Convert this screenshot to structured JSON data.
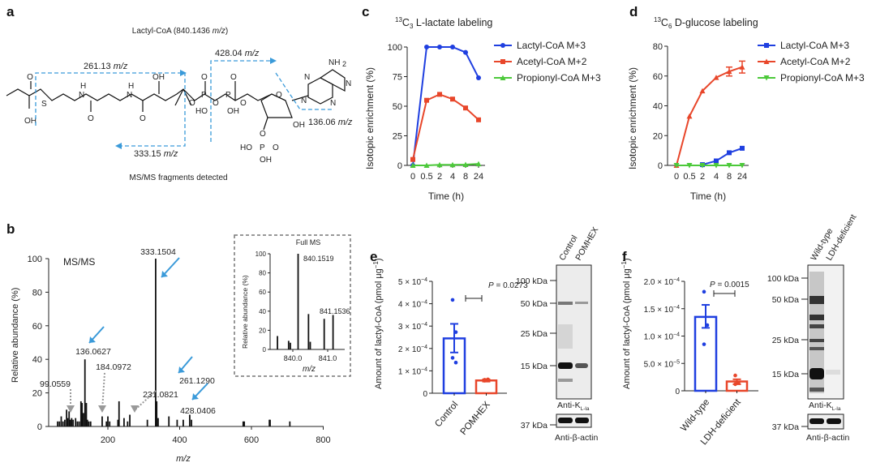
{
  "panels": {
    "a": "a",
    "b": "b",
    "c": "c",
    "d": "d",
    "e": "e",
    "f": "f"
  },
  "structure": {
    "title": "Lactyl-CoA (840.1436 ",
    "title_unit": "m/z",
    "title_close": ")",
    "fragments": [
      {
        "value": "261.13 ",
        "unit": "m/z"
      },
      {
        "value": "428.04 ",
        "unit": "m/z"
      },
      {
        "value": "333.15 ",
        "unit": "m/z"
      },
      {
        "value": "136.06 ",
        "unit": "m/z"
      }
    ],
    "caption": "MS/MS fragments detected",
    "atoms": [
      "O",
      "OH",
      "S",
      "H",
      "N",
      "O",
      "H",
      "N",
      "O",
      "OH",
      "O",
      "P",
      "O",
      "HO",
      "O",
      "P",
      "OH",
      "O",
      "O",
      "O",
      "N",
      "N",
      "N",
      "N",
      "NH",
      "2",
      "OH",
      "O",
      "HO",
      "P",
      "O",
      "OH"
    ],
    "fragment_color": "#3a9ad9"
  },
  "chart_data": [
    {
      "id": "b",
      "type": "bar",
      "title": "MS/MS",
      "xlabel": "m/z",
      "ylabel": "Relative abundance (%)",
      "xlim": [
        35,
        800
      ],
      "ylim": [
        0,
        100
      ],
      "xticks": [
        200,
        400,
        600,
        800
      ],
      "yticks": [
        0,
        20,
        40,
        60,
        80,
        100
      ],
      "peaks": [
        [
          60,
          3
        ],
        [
          65,
          3
        ],
        [
          70,
          6
        ],
        [
          75,
          3
        ],
        [
          80,
          4
        ],
        [
          85,
          10
        ],
        [
          88,
          5
        ],
        [
          92,
          9
        ],
        [
          95,
          4
        ],
        [
          99.0559,
          5
        ],
        [
          103,
          4
        ],
        [
          110,
          5
        ],
        [
          115,
          3
        ],
        [
          120,
          3
        ],
        [
          125,
          15
        ],
        [
          128,
          14
        ],
        [
          132,
          8
        ],
        [
          136.0627,
          40
        ],
        [
          140,
          14
        ],
        [
          143,
          4
        ],
        [
          147,
          3
        ],
        [
          152,
          3
        ],
        [
          184.0972,
          6
        ],
        [
          196,
          3
        ],
        [
          200,
          6
        ],
        [
          205,
          3
        ],
        [
          228,
          4
        ],
        [
          231.0821,
          15
        ],
        [
          245,
          5
        ],
        [
          255,
          3
        ],
        [
          261.129,
          7
        ],
        [
          310,
          4
        ],
        [
          333.1504,
          100
        ],
        [
          336,
          15
        ],
        [
          340,
          5
        ],
        [
          370,
          6
        ],
        [
          393,
          4
        ],
        [
          410,
          4
        ],
        [
          428.0406,
          7
        ],
        [
          433,
          4
        ],
        [
          577,
          3
        ],
        [
          580,
          3
        ],
        [
          650,
          4
        ],
        [
          652,
          4
        ],
        [
          707,
          3
        ]
      ],
      "annotations": [
        "333.1504",
        "136.0627",
        "184.0972",
        "99.0559",
        "231.0821",
        "261.1290",
        "428.0406"
      ],
      "arrow_color": "#3a9ad9",
      "dotted_arrow_color": "#999999"
    },
    {
      "id": "b-inset",
      "type": "bar",
      "title": "Full MS",
      "xlabel": "m/z",
      "ylabel": "Relative abundance (%)",
      "xticks": [
        "840.0",
        "841.0"
      ],
      "yticks": [
        0,
        20,
        40,
        60,
        80,
        100
      ],
      "ylim": [
        0,
        100
      ],
      "peaks": [
        [
          839.56,
          14
        ],
        [
          839.88,
          9
        ],
        [
          839.93,
          7
        ],
        [
          840.1519,
          100
        ],
        [
          840.45,
          37
        ],
        [
          840.5,
          8
        ],
        [
          840.9,
          32
        ],
        [
          841.1536,
          36
        ]
      ],
      "annotations": [
        "840.1519",
        "841.1536"
      ]
    },
    {
      "id": "c",
      "type": "line",
      "title_sup": "13",
      "title_main": "C",
      "title_sub": "3",
      "title_rest": " L-lactate labeling",
      "xlabel": "Time (h)",
      "ylabel": "Isotopic enrichment (%)",
      "categories": [
        "0",
        "0.5",
        "2",
        "4",
        "8",
        "24"
      ],
      "yticks": [
        0,
        25,
        50,
        75,
        100
      ],
      "ylim": [
        0,
        100
      ],
      "legend": "top-right",
      "series": [
        {
          "name": "Lactyl-CoA M+3",
          "color": "#1f3fe0",
          "marker": "circle",
          "values": [
            0,
            100,
            100,
            100,
            95.5,
            74
          ]
        },
        {
          "name": "Acetyl-CoA M+2",
          "color": "#e8462a",
          "marker": "square",
          "values": [
            5,
            55,
            60,
            56,
            48.5,
            38.5
          ]
        },
        {
          "name": "Propionyl-CoA M+3",
          "color": "#4cc93a",
          "marker": "triangle",
          "values": [
            0,
            0,
            0.5,
            0.5,
            0.7,
            1.3
          ]
        }
      ]
    },
    {
      "id": "d",
      "type": "line",
      "title_sup": "13",
      "title_main": "C",
      "title_sub": "6",
      "title_rest": " D-glucose labeling",
      "xlabel": "Time (h)",
      "ylabel": "Isotopic enrichment (%)",
      "categories": [
        "0",
        "0.5",
        "2",
        "4",
        "8",
        "24"
      ],
      "yticks": [
        0,
        20,
        40,
        60,
        80
      ],
      "ylim": [
        0,
        80
      ],
      "legend": "top-right",
      "series": [
        {
          "name": "Lactyl-CoA M+3",
          "color": "#1f3fe0",
          "marker": "square",
          "values": [
            null,
            null,
            0.5,
            3,
            8.5,
            11.5
          ]
        },
        {
          "name": "Acetyl-CoA M+2",
          "color": "#e8462a",
          "marker": "triangle",
          "values": [
            0,
            33,
            50,
            59,
            63,
            66
          ],
          "errors": [
            0,
            0,
            0,
            0,
            3,
            4
          ]
        },
        {
          "name": "Propionyl-CoA M+3",
          "color": "#4cc93a",
          "marker": "triangle-down",
          "values": [
            0,
            0,
            0,
            0,
            0,
            0
          ]
        }
      ]
    },
    {
      "id": "e",
      "type": "bar",
      "ylabel": "Amount of lactyl-CoA (pmol μg",
      "ylabel_sup": "−1",
      "ylabel_close": ")",
      "ylim": [
        0,
        0.0005
      ],
      "yticks": [
        {
          "v": 0,
          "m": "0",
          "e": ""
        },
        {
          "v": 0.0001,
          "m": "1 × 10",
          "e": "−4"
        },
        {
          "v": 0.0002,
          "m": "2 × 10",
          "e": "−4"
        },
        {
          "v": 0.0003,
          "m": "3 × 10",
          "e": "−4"
        },
        {
          "v": 0.0004,
          "m": "4 × 10",
          "e": "−4"
        },
        {
          "v": 0.0005,
          "m": "5 × 10",
          "e": "−4"
        }
      ],
      "categories": [
        "Control",
        "POMHEX"
      ],
      "values": [
        0.000245,
        5.7e-05
      ],
      "error_low": [
        0.000182,
        5.2e-05
      ],
      "error_high": [
        0.00031,
        6.2e-05
      ],
      "points": [
        [
          0.000417,
          0.000273,
          0.000158,
          0.000137
        ],
        [
          6e-05,
          5.8e-05,
          5.6e-05,
          6.2e-05
        ]
      ],
      "colors": [
        "#1f3fe0",
        "#e8462a"
      ],
      "p_label": "P",
      "p_value": " = 0.0273"
    },
    {
      "id": "f",
      "type": "bar",
      "ylabel": "Amount of lactyl-CoA (pmol μg",
      "ylabel_sup": "−1",
      "ylabel_close": ")",
      "ylim": [
        0,
        0.0002
      ],
      "yticks": [
        {
          "v": 0,
          "m": "0",
          "e": ""
        },
        {
          "v": 5e-05,
          "m": "5.0 × 10",
          "e": "−5"
        },
        {
          "v": 0.0001,
          "m": "1.0 × 10",
          "e": "−4"
        },
        {
          "v": 0.00015,
          "m": "1.5 × 10",
          "e": "−4"
        },
        {
          "v": 0.0002,
          "m": "2.0 × 10",
          "e": "−4"
        }
      ],
      "categories": [
        "Wild-type",
        "LDH-deficient"
      ],
      "values": [
        0.000135,
        1.7e-05
      ],
      "error_low": [
        0.000115,
        1.2e-05
      ],
      "error_high": [
        0.000157,
        2.1e-05
      ],
      "points": [
        [
          0.000181,
          0.00012,
          8.5e-05
        ],
        [
          2.8e-05,
          1.5e-05,
          1.2e-05
        ]
      ],
      "colors": [
        "#1f3fe0",
        "#e8462a"
      ],
      "p_label": "P",
      "p_value": " = 0.0015"
    }
  ],
  "blots": {
    "e": {
      "lanes": [
        "Control",
        "POMHEX"
      ],
      "markers": [
        "100 kDa",
        "50 kDa",
        "25 kDa",
        "15 kDa"
      ],
      "actin_marker": "37 kDa",
      "antibody": "Anti-K",
      "antibody_sub": "L-la",
      "actin": "Anti-β-actin"
    },
    "f": {
      "lanes": [
        "Wild-type",
        "LDH-deficient"
      ],
      "markers": [
        "100 kDa",
        "50 kDa",
        "25 kDa",
        "15 kDa"
      ],
      "actin_marker": "37 kDa",
      "antibody": "Anti-K",
      "antibody_sub": "L-la",
      "actin": "Anti-β-actin"
    }
  }
}
